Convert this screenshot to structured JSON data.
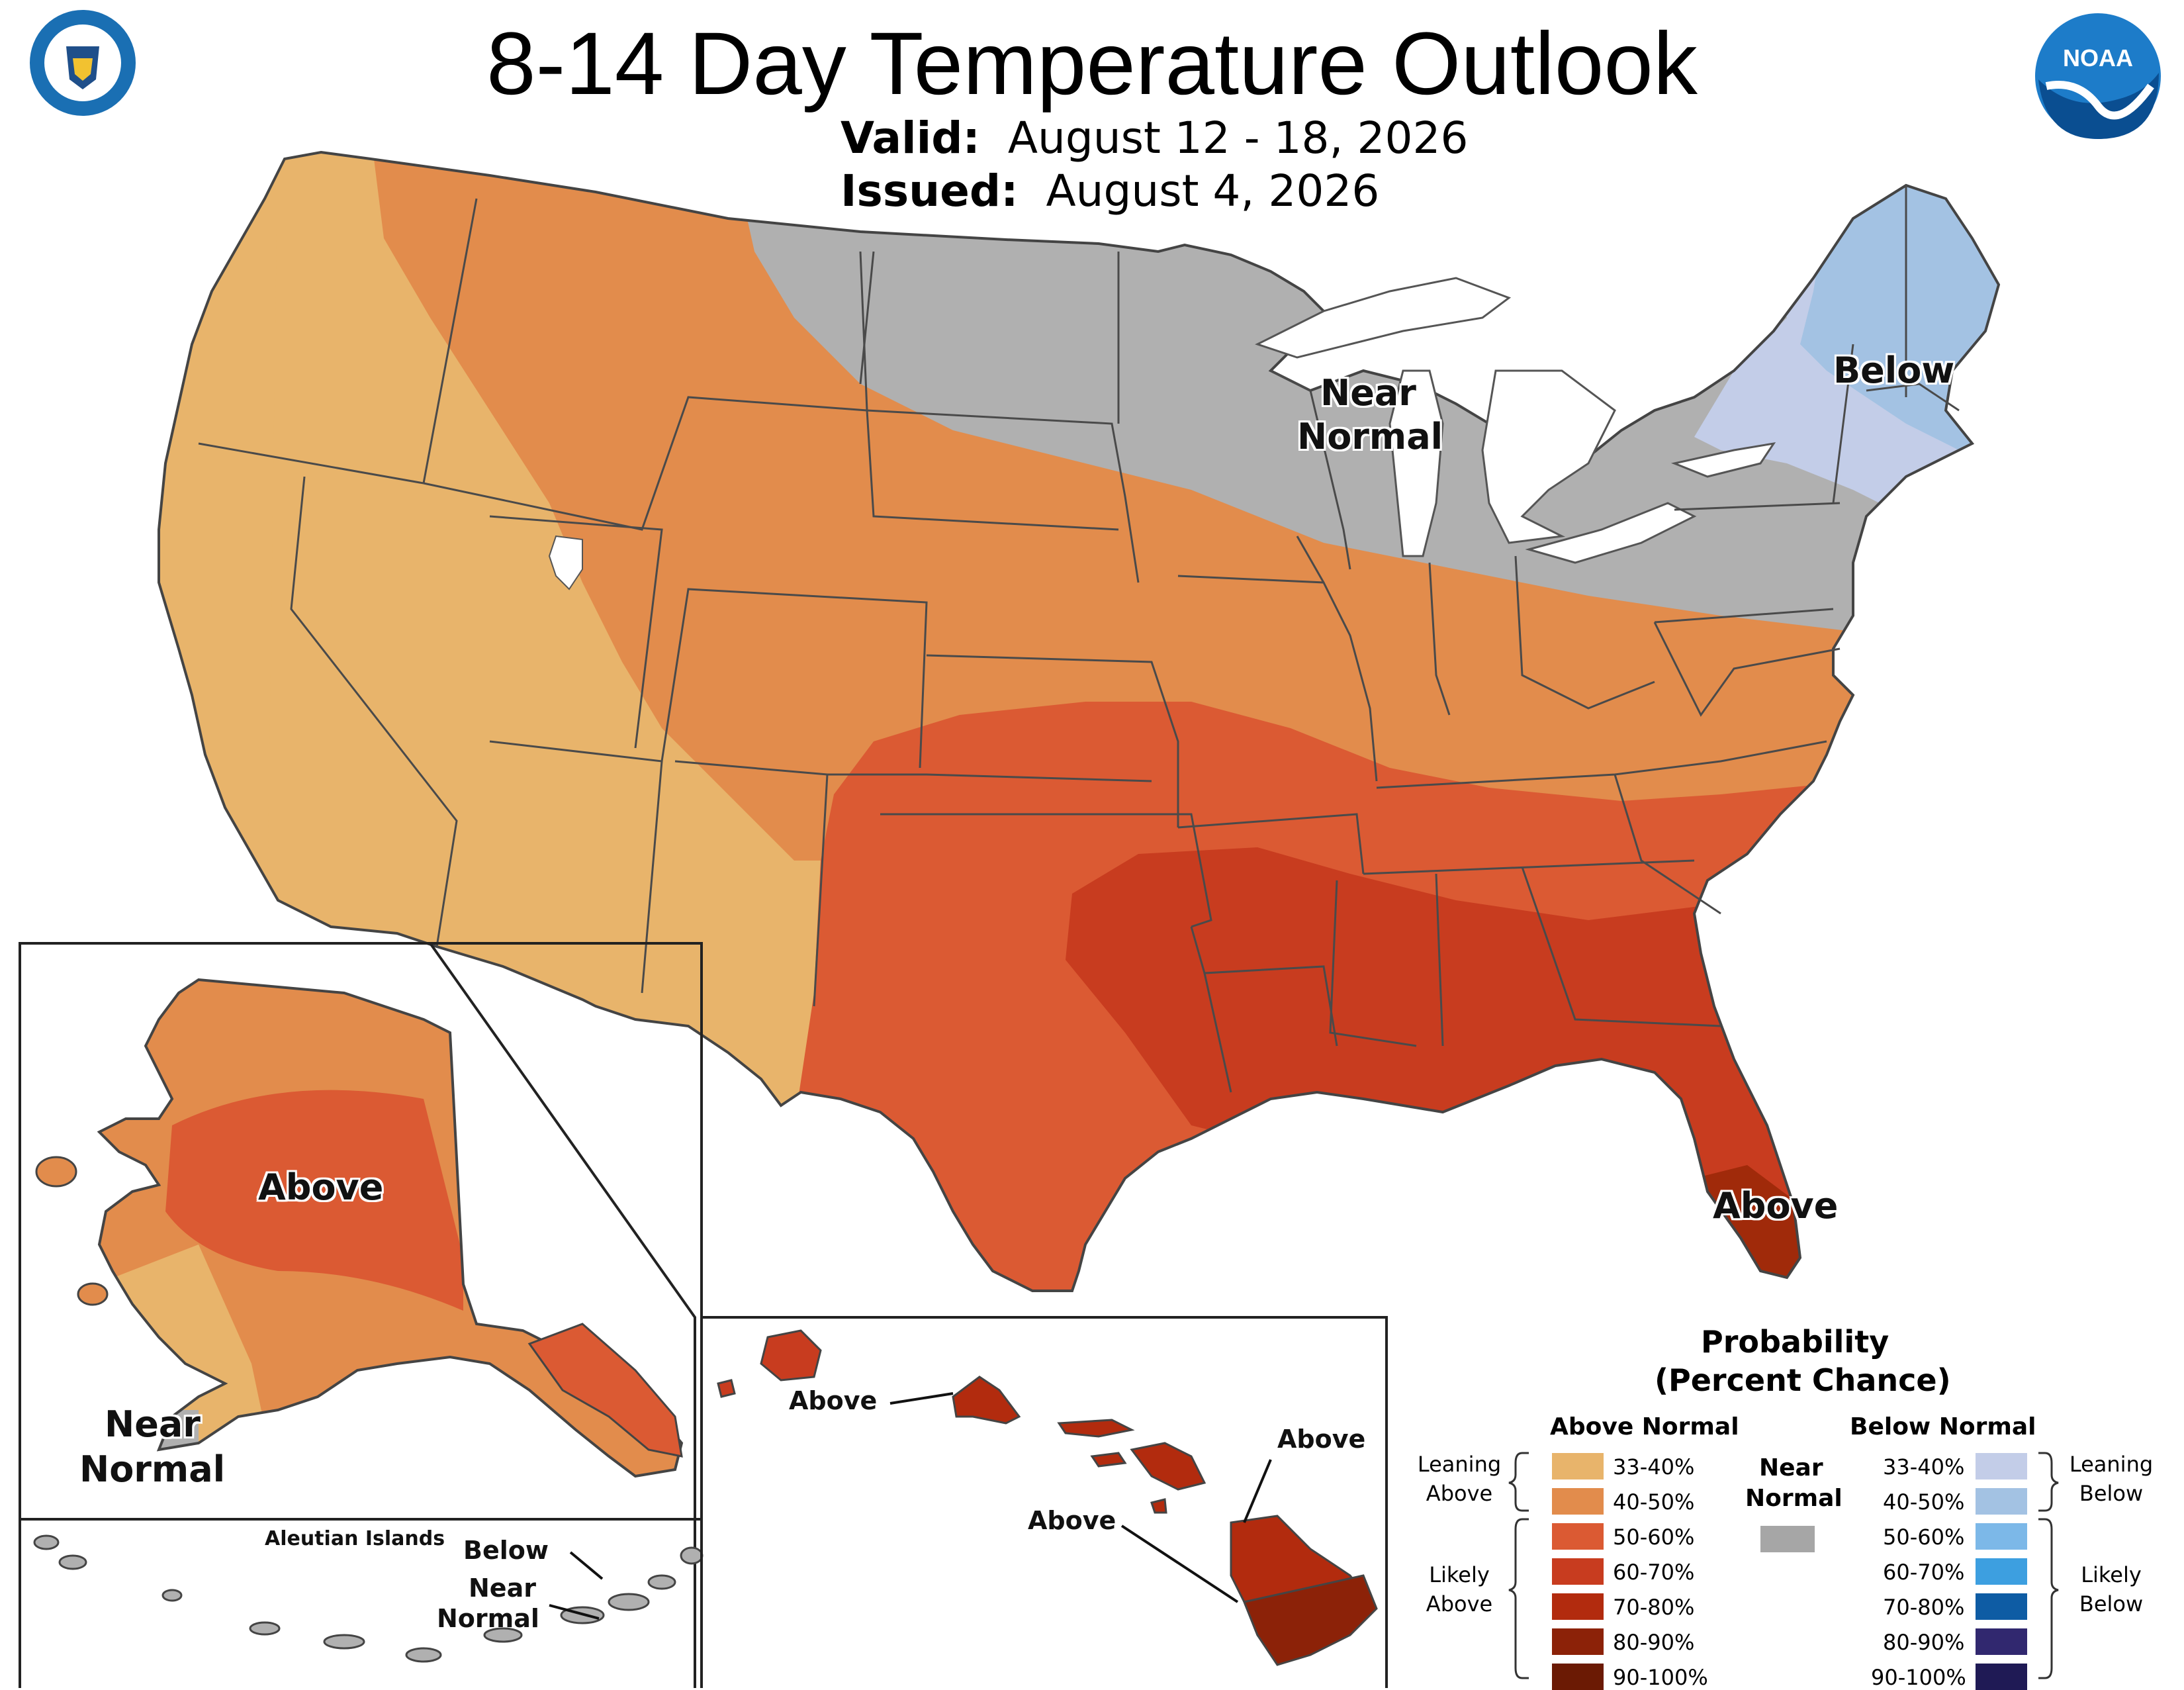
{
  "title": "8-14 Day Temperature Outlook",
  "valid_label": "Valid:",
  "valid_value": "August 12 - 18, 2026",
  "issued_label": "Issued:",
  "issued_value": "August 4, 2026",
  "logos": {
    "doc": "department-of-commerce-seal",
    "noaa": "NOAA"
  },
  "map_labels": {
    "below_ne": "Below",
    "near_normal_mw_1": "Near",
    "near_normal_mw_2": "Normal",
    "above_fl": "Above",
    "above_ak": "Above",
    "near_ak_1": "Near",
    "near_ak_2": "Normal",
    "aleutian_title": "Aleutian Islands",
    "aleutian_below": "Below",
    "aleutian_near_1": "Near",
    "aleutian_near_2": "Normal",
    "hi_above_1": "Above",
    "hi_above_2": "Above",
    "hi_above_3": "Above"
  },
  "legend": {
    "title_1": "Probability",
    "title_2": "(Percent Chance)",
    "above_head": "Above Normal",
    "below_head": "Below Normal",
    "near_1": "Near",
    "near_2": "Normal",
    "leaning_above_1": "Leaning",
    "leaning_above_2": "Above",
    "likely_above_1": "Likely",
    "likely_above_2": "Above",
    "leaning_below_1": "Leaning",
    "leaning_below_2": "Below",
    "likely_below_1": "Likely",
    "likely_below_2": "Below",
    "above": [
      {
        "label": "33-40%",
        "color": "#e8b46b"
      },
      {
        "label": "40-50%",
        "color": "#e28c4c"
      },
      {
        "label": "50-60%",
        "color": "#db5a33"
      },
      {
        "label": "60-70%",
        "color": "#c83c1f"
      },
      {
        "label": "70-80%",
        "color": "#b22b0e"
      },
      {
        "label": "80-90%",
        "color": "#8c2208"
      },
      {
        "label": "90-100%",
        "color": "#6b1a04"
      }
    ],
    "near_color": "#a6a6a6",
    "below": [
      {
        "label": "33-40%",
        "color": "#c3cde8"
      },
      {
        "label": "40-50%",
        "color": "#a3c2e3"
      },
      {
        "label": "50-60%",
        "color": "#7cb8e8"
      },
      {
        "label": "60-70%",
        "color": "#3d9fe0"
      },
      {
        "label": "70-80%",
        "color": "#0e5ca4"
      },
      {
        "label": "80-90%",
        "color": "#31286f"
      },
      {
        "label": "90-100%",
        "color": "#1f1a55"
      }
    ]
  }
}
